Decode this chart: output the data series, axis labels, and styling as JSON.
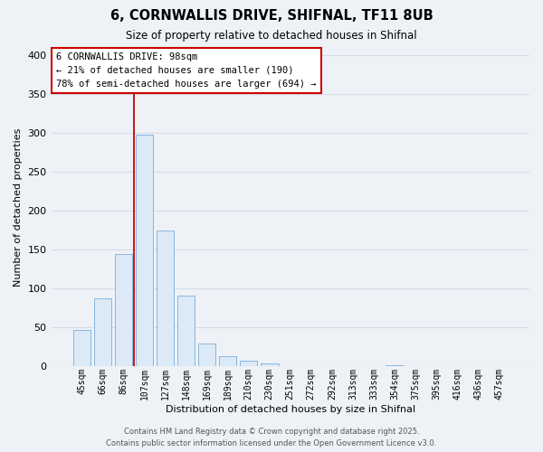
{
  "title": "6, CORNWALLIS DRIVE, SHIFNAL, TF11 8UB",
  "subtitle": "Size of property relative to detached houses in Shifnal",
  "xlabel": "Distribution of detached houses by size in Shifnal",
  "ylabel": "Number of detached properties",
  "bar_labels": [
    "45sqm",
    "66sqm",
    "86sqm",
    "107sqm",
    "127sqm",
    "148sqm",
    "169sqm",
    "189sqm",
    "210sqm",
    "230sqm",
    "251sqm",
    "272sqm",
    "292sqm",
    "313sqm",
    "333sqm",
    "354sqm",
    "375sqm",
    "395sqm",
    "416sqm",
    "436sqm",
    "457sqm"
  ],
  "bar_values": [
    47,
    88,
    145,
    298,
    175,
    91,
    29,
    13,
    7,
    4,
    0,
    0,
    0,
    0,
    0,
    2,
    0,
    0,
    0,
    0,
    0
  ],
  "bar_color": "#dce9f7",
  "bar_edge_color": "#7aaddb",
  "grid_color": "#d5dde8",
  "background_color": "#eef2f7",
  "plot_bg_color": "#eef2f7",
  "vline_color": "#cc0000",
  "annotation_title": "6 CORNWALLIS DRIVE: 98sqm",
  "annotation_line1": "← 21% of detached houses are smaller (190)",
  "annotation_line2": "78% of semi-detached houses are larger (694) →",
  "annotation_box_color": "#ffffff",
  "annotation_box_edge": "#cc0000",
  "ylim": [
    0,
    410
  ],
  "yticks": [
    0,
    50,
    100,
    150,
    200,
    250,
    300,
    350,
    400
  ],
  "footer1": "Contains HM Land Registry data © Crown copyright and database right 2025.",
  "footer2": "Contains public sector information licensed under the Open Government Licence v3.0."
}
